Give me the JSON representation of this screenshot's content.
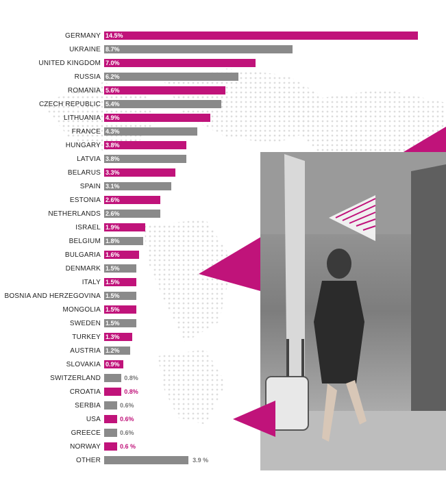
{
  "colors": {
    "pink": "#c0137a",
    "gray": "#8a8a8a"
  },
  "chart_data": {
    "type": "bar",
    "orientation": "horizontal",
    "categories": [
      "GERMANY",
      "UKRAINE",
      "UNITED KINGDOM",
      "RUSSIA",
      "ROMANIA",
      "CZECH REPUBLIC",
      "LITHUANIA",
      "FRANCE",
      "HUNGARY",
      "LATVIA",
      "BELARUS",
      "SPAIN",
      "ESTONIA",
      "NETHERLANDS",
      "ISRAEL",
      "BELGIUM",
      "BULGARIA",
      "DENMARK",
      "ITALY",
      "BOSNIA AND HERZEGOVINA",
      "MONGOLIA",
      "SWEDEN",
      "TURKEY",
      "AUSTRIA",
      "SLOVAKIA",
      "SWITZERLAND",
      "CROATIA",
      "SERBIA",
      "USA",
      "GREECE",
      "NORWAY",
      "OTHER"
    ],
    "values": [
      14.5,
      8.7,
      7.0,
      6.2,
      5.6,
      5.4,
      4.9,
      4.3,
      3.8,
      3.8,
      3.3,
      3.1,
      2.6,
      2.6,
      1.9,
      1.8,
      1.6,
      1.5,
      1.5,
      1.5,
      1.5,
      1.5,
      1.3,
      1.2,
      0.9,
      0.8,
      0.8,
      0.6,
      0.6,
      0.6,
      0.6,
      3.9
    ],
    "value_labels": [
      "14.5%",
      "8.7%",
      "7.0%",
      "6.2%",
      "5.6%",
      "5.4%",
      "4.9%",
      "4.3%",
      "3.8%",
      "3.8%",
      "3.3%",
      "3.1%",
      "2.6%",
      "2.6%",
      "1.9%",
      "1.8%",
      "1.6%",
      "1.5%",
      "1.5%",
      "1.5%",
      "1.5%",
      "1.5%",
      "1.3%",
      "1.2%",
      "0.9%",
      "0.8%",
      "0.8%",
      "0.6%",
      "0.6%",
      "0.6%",
      "0.6 %",
      "3.9 %"
    ],
    "colors": [
      "pink",
      "gray",
      "pink",
      "gray",
      "pink",
      "gray",
      "pink",
      "gray",
      "pink",
      "gray",
      "pink",
      "gray",
      "pink",
      "gray",
      "pink",
      "gray",
      "pink",
      "gray",
      "pink",
      "gray",
      "pink",
      "gray",
      "pink",
      "gray",
      "pink",
      "gray",
      "pink",
      "gray",
      "pink",
      "gray",
      "pink",
      "gray"
    ],
    "xlim": [
      0,
      14.5
    ],
    "grid": false,
    "legend": "none"
  }
}
